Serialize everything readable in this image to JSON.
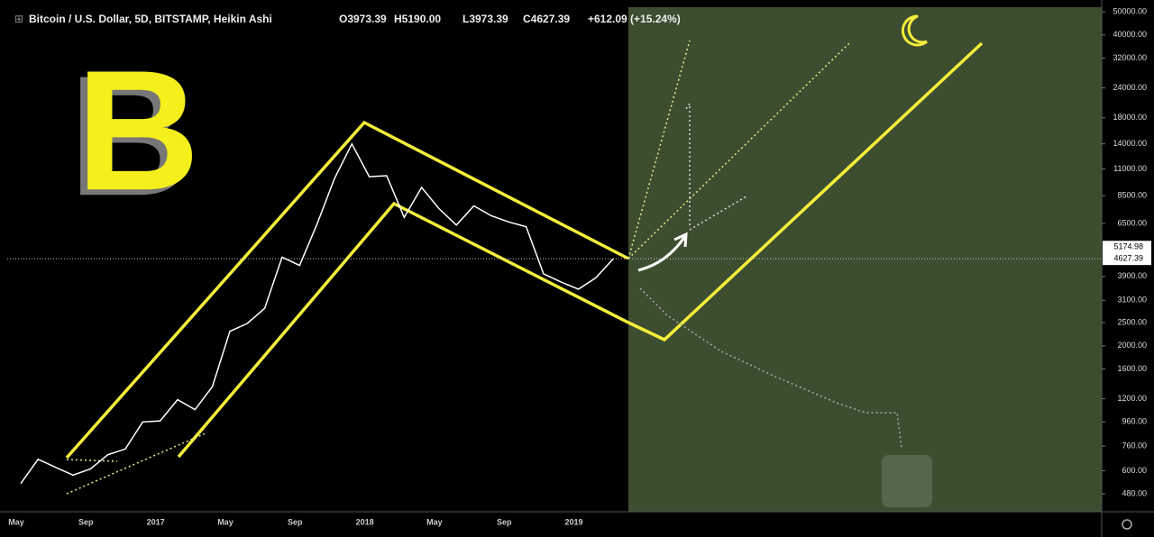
{
  "chart_data": {
    "type": "line",
    "title": "Bitcoin / U.S. Dollar, 5D, BITSTAMP, Heikin Ashi",
    "ohlc_text": [
      "O3973.39",
      "H5190.00",
      "L3973.39",
      "C4627.39",
      "+612.09 (+15.24%)"
    ],
    "categories": [
      "May",
      null,
      null,
      null,
      "Sep",
      null,
      null,
      null,
      "2017",
      null,
      null,
      null,
      "May",
      null,
      null,
      null,
      "Sep",
      null,
      null,
      null,
      "2018",
      null,
      null,
      null,
      "May",
      null,
      null,
      null,
      "Sep",
      null,
      null,
      null,
      "2019",
      null,
      null
    ],
    "series": [
      {
        "name": "BTCUSD",
        "color": "#ffffff",
        "values": [
          530,
          670,
          620,
          575,
          610,
          700,
          740,
          960,
          970,
          1190,
          1080,
          1350,
          2300,
          2480,
          2870,
          4700,
          4340,
          6450,
          10000,
          14000,
          10200,
          10300,
          6900,
          9200,
          7500,
          6400,
          7700,
          7000,
          6600,
          6300,
          4000,
          3700,
          3450,
          3850,
          4627.39
        ]
      }
    ],
    "log_scale": true,
    "ylim": [
      404,
      52240
    ],
    "yticks": [
      {
        "value": 50000,
        "label": "50000.00"
      },
      {
        "value": 40000,
        "label": "40000.00"
      },
      {
        "value": 32000,
        "label": "32000.00"
      },
      {
        "value": 24000,
        "label": "24000.00"
      },
      {
        "value": 18000,
        "label": "18000.00"
      },
      {
        "value": 14000,
        "label": "14000.00"
      },
      {
        "value": 11000,
        "label": "11000.00"
      },
      {
        "value": 8500,
        "label": "8500.00"
      },
      {
        "value": 6500,
        "label": "6500.00"
      },
      {
        "value": 3900,
        "label": "3900.00"
      },
      {
        "value": 3100,
        "label": "3100.00"
      },
      {
        "value": 2500,
        "label": "2500.00"
      },
      {
        "value": 2000,
        "label": "2000.00"
      },
      {
        "value": 1600,
        "label": "1600.00"
      },
      {
        "value": 1200,
        "label": "1200.00"
      },
      {
        "value": 960,
        "label": "960.00"
      },
      {
        "value": 760,
        "label": "760.00"
      },
      {
        "value": 600,
        "label": "600.00"
      },
      {
        "value": 480,
        "label": "480.00"
      }
    ],
    "price_labels": [
      5174.98,
      4627.39
    ],
    "logo_text": "B"
  }
}
